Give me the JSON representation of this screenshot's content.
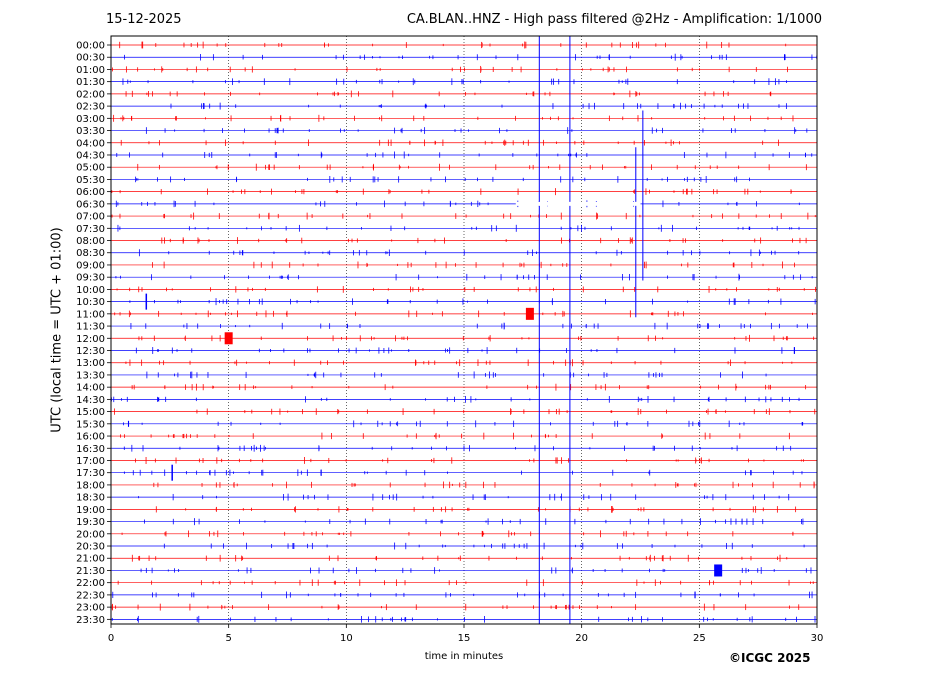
{
  "header": {
    "date": "15-12-2025",
    "title": "CA.BLAN..HNZ - High pass filtered @2Hz - Amplification: 1/1000"
  },
  "footer": {
    "copyright": "©ICGC 2025"
  },
  "colors": {
    "trace_a": "#ff0000",
    "trace_b": "#0000ff",
    "grid": "#000000"
  },
  "chart_data": {
    "type": "line",
    "title": "CA.BLAN..HNZ - High pass filtered @2Hz - Amplification: 1/1000",
    "xlabel": "time in minutes",
    "ylabel": "UTC (local time = UTC + 01:00)",
    "xlim": [
      0,
      30
    ],
    "x_ticks": [
      "0",
      "5",
      "10",
      "15",
      "20",
      "25",
      "30"
    ],
    "x_tick_values": [
      0,
      5,
      10,
      15,
      20,
      25,
      30
    ],
    "vertical_grid_minutes": [
      5,
      10,
      15,
      20,
      25
    ],
    "row_labels": [
      "00:00",
      "00:30",
      "01:00",
      "01:30",
      "02:00",
      "02:30",
      "03:00",
      "03:30",
      "04:00",
      "04:30",
      "05:00",
      "05:30",
      "06:00",
      "06:30",
      "07:00",
      "07:30",
      "08:00",
      "08:30",
      "09:00",
      "09:30",
      "10:00",
      "10:30",
      "11:00",
      "11:30",
      "12:00",
      "12:30",
      "13:00",
      "13:30",
      "14:00",
      "14:30",
      "15:00",
      "15:30",
      "16:00",
      "16:30",
      "17:00",
      "17:30",
      "18:00",
      "18:30",
      "19:00",
      "19:30",
      "20:00",
      "20:30",
      "21:00",
      "21:30",
      "22:00",
      "22:30",
      "23:00",
      "23:30"
    ],
    "row_color_cycle": [
      "trace_a",
      "trace_b"
    ],
    "notable_events": [
      {
        "row": "00:00",
        "minute": 18.2,
        "kind": "long-vertical-spike"
      },
      {
        "row": "00:00",
        "minute": 19.5,
        "kind": "long-vertical-spike"
      },
      {
        "row": "03:30",
        "minute": 22.6,
        "kind": "vertical-spike"
      },
      {
        "row": "05:00",
        "minute": 22.3,
        "kind": "vertical-spike"
      },
      {
        "row": "06:30",
        "minute": 17.2,
        "kind": "data-gap-start"
      },
      {
        "row": "10:30",
        "minute": 1.5,
        "kind": "spike"
      },
      {
        "row": "11:00",
        "minute": 17.8,
        "kind": "burst"
      },
      {
        "row": "12:00",
        "minute": 5.0,
        "kind": "burst"
      },
      {
        "row": "17:30",
        "minute": 2.6,
        "kind": "spike"
      },
      {
        "row": "21:30",
        "minute": 25.8,
        "kind": "burst"
      }
    ]
  }
}
